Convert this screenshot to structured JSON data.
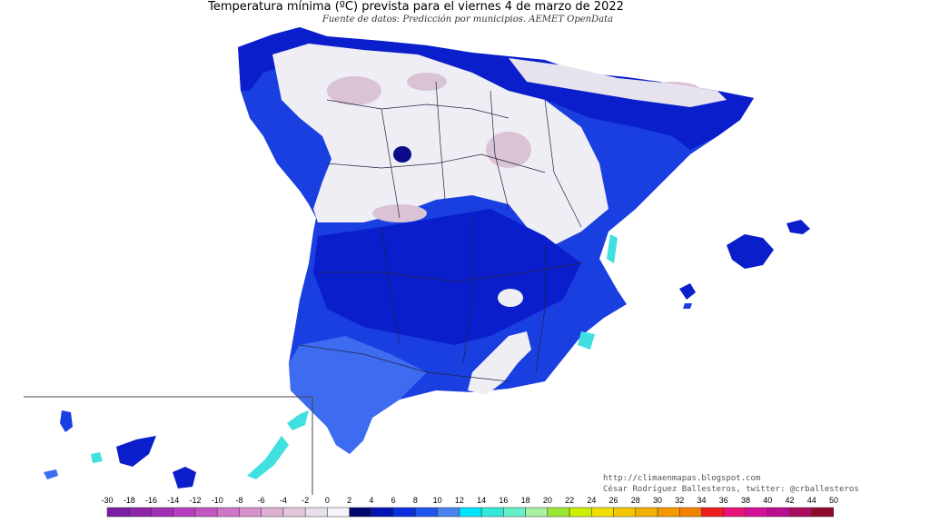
{
  "title": "Temperatura mínima (ºC) prevista para el viernes 4 de marzo de 2022",
  "subtitle": "Fuente de datos: Predicción por municipios. AEMET OpenData",
  "credits": {
    "line1": "http://climaenmapas.blogspot.com",
    "line2": "César Rodríguez Ballesteros, twitter: @crballesteros"
  },
  "legend": {
    "ticks": [
      "-30",
      "-18",
      "-16",
      "-14",
      "-12",
      "-10",
      "-8",
      "-6",
      "-4",
      "-2",
      "0",
      "2",
      "4",
      "6",
      "8",
      "10",
      "12",
      "14",
      "16",
      "18",
      "20",
      "22",
      "24",
      "26",
      "28",
      "30",
      "32",
      "34",
      "36",
      "38",
      "40",
      "42",
      "44",
      "50"
    ],
    "colors": [
      "#7a1fa2",
      "#8e24aa",
      "#a12fb3",
      "#b53fbf",
      "#c356c2",
      "#cf74c9",
      "#d892cc",
      "#ddb0d3",
      "#e3c6dc",
      "#e8e0e8",
      "#f4f4f8",
      "#000a6e",
      "#0014b4",
      "#0a2fdb",
      "#1e56eb",
      "#4a83f0",
      "#00e5ff",
      "#33ead9",
      "#66f0c6",
      "#a8f0a2",
      "#9ae630",
      "#ccee00",
      "#f0e000",
      "#f4c800",
      "#f4b000",
      "#f49a00",
      "#f48200",
      "#ee1c1c",
      "#e8127a",
      "#d4109a",
      "#bb0e8e",
      "#a80c5c",
      "#8e0a2a"
    ]
  },
  "map_colors": {
    "cold_land": "#eeeef4",
    "frost_pink": "#d9c3d4",
    "deep_blue": "#0a1ecc",
    "mid_blue": "#1a3fe0",
    "light_blue": "#3d6cf0",
    "navy": "#0a0a8a",
    "cyan": "#40e0e0",
    "border": "#222244"
  }
}
